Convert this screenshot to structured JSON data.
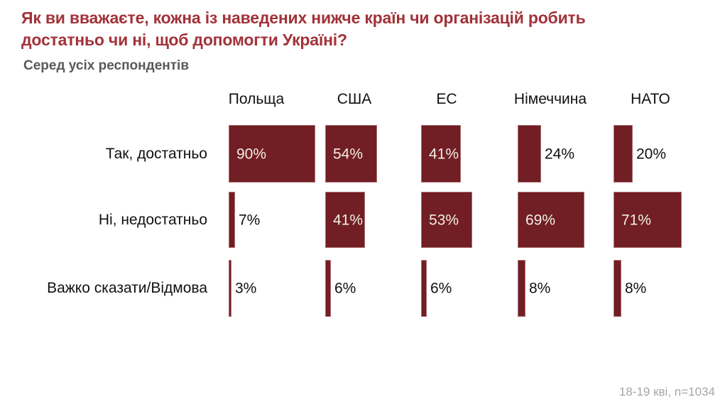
{
  "chart_data": {
    "type": "bar",
    "orientation": "horizontal",
    "title": "Як ви вважаєте, кожна із наведених нижче країн чи організацій робить достатньо чи ні, щоб допомогти Україні?",
    "subtitle": "Серед усіх респондентів",
    "categories": [
      "Польща",
      "США",
      "ЕС",
      "Німеччина",
      "НАТО"
    ],
    "series": [
      {
        "name": "Так, достатньо",
        "values": [
          90,
          54,
          41,
          24,
          20
        ]
      },
      {
        "name": "Ні, недостатньо",
        "values": [
          7,
          41,
          53,
          69,
          71
        ]
      },
      {
        "name": "Важко сказати/Відмова",
        "values": [
          3,
          6,
          6,
          8,
          8
        ]
      }
    ],
    "value_suffix": "%",
    "xlim": [
      0,
      100
    ],
    "grid": false,
    "legend": false,
    "note": "18-19 кві, n=1034",
    "colors": {
      "bar": "#711E24",
      "title": "#A23239",
      "subtitle": "#595959",
      "value_inside": "#F2EDE6",
      "value_outside": "#111111",
      "note": "#A6A6A6"
    }
  }
}
